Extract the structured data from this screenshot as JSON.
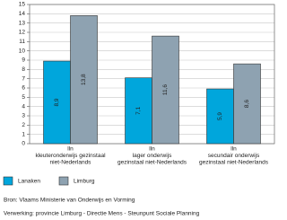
{
  "chart_data": {
    "type": "bar",
    "categories": [
      [
        "lln",
        "kleuteronderwijs gezinstaal",
        "niet-Nederlands"
      ],
      [
        "lln",
        "lager onderwijs",
        "gezinstaal niet-Nederlands"
      ],
      [
        "lln",
        "secundair onderwijs",
        "gezinstaal niet-Nederlands"
      ]
    ],
    "series": [
      {
        "name": "Lanaken",
        "color": "#00a6dc",
        "values": [
          8.9,
          7.1,
          5.9
        ],
        "value_labels": [
          "8,9",
          "7,1",
          "5,9"
        ]
      },
      {
        "name": "Limburg",
        "color": "#8ea2b1",
        "values": [
          13.8,
          11.6,
          8.6
        ],
        "value_labels": [
          "13,8",
          "11,6",
          "8,6"
        ]
      }
    ],
    "ylim": [
      0,
      15
    ],
    "yticks": [
      0,
      1,
      2,
      3,
      4,
      5,
      6,
      7,
      8,
      9,
      10,
      11,
      12,
      13,
      14,
      15
    ],
    "grid": true,
    "source": "Bron: Vlaams Ministerie van Onderwijs en Vorming",
    "note": "Verwerking: provincie Limburg - Directie Mens - Steunpunt Sociale Planning"
  }
}
